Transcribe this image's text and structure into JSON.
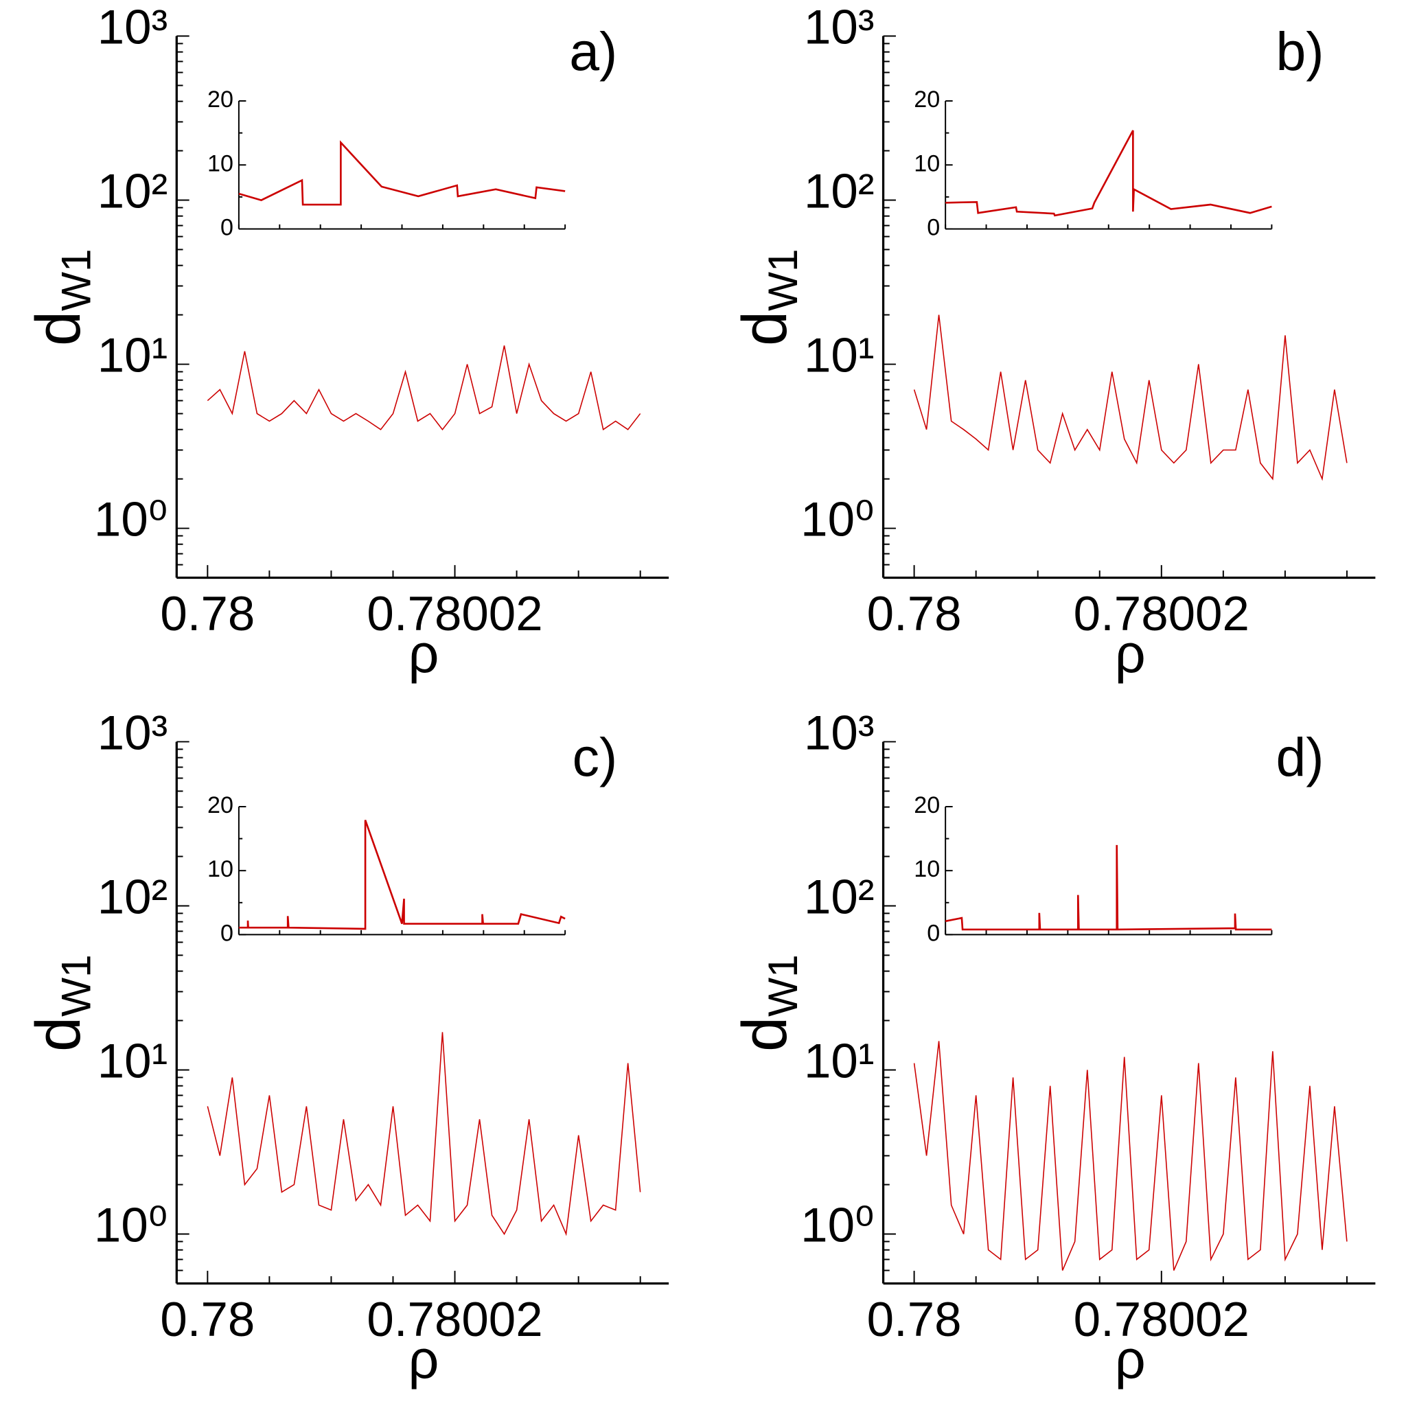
{
  "chart_data": [
    {
      "type": "line",
      "panel_label": "a)",
      "xlabel": "ρ",
      "ylabel": {
        "text": "d",
        "subscript": "W1"
      },
      "log_y": true,
      "color": "#cc0000",
      "xlim": [
        0.7799975,
        0.7800373
      ],
      "xticks": [
        0.78,
        0.78002
      ],
      "xminorticks": [
        0.780005,
        0.78001,
        0.780015,
        0.780025,
        0.78003,
        0.780035
      ],
      "ylim": [
        0.5,
        1000
      ],
      "yticks": [
        {
          "value": 1,
          "label": "10⁰"
        },
        {
          "value": 10,
          "label": "10¹"
        },
        {
          "value": 100,
          "label": "10²"
        },
        {
          "value": 1000,
          "label": "10³"
        }
      ],
      "x": [
        0.78,
        0.780001,
        0.780002,
        0.780003,
        0.780004,
        0.780005,
        0.780006,
        0.780007,
        0.780008,
        0.780009,
        0.78001,
        0.780011,
        0.780012,
        0.780013,
        0.780014,
        0.780015,
        0.780016,
        0.780017,
        0.780018,
        0.780019,
        0.78002,
        0.780021,
        0.780022,
        0.780023,
        0.780024,
        0.780025,
        0.780026,
        0.780027,
        0.780028,
        0.780029,
        0.78003,
        0.780031,
        0.780032,
        0.780033,
        0.780034,
        0.780035
      ],
      "values": [
        6,
        7,
        5,
        12,
        5,
        4.5,
        5,
        6,
        5,
        7,
        5,
        4.5,
        5,
        4.5,
        4,
        5,
        9,
        4.5,
        5,
        4,
        5,
        10,
        5,
        5.5,
        13,
        5,
        10,
        6,
        5,
        4.5,
        5,
        9,
        4,
        4.5,
        4,
        5
      ],
      "inset": {
        "xlim": [
          0,
          8
        ],
        "xminorticks": [
          0,
          1,
          2,
          3,
          4,
          5,
          6,
          7,
          8
        ],
        "ylim": [
          0,
          20
        ],
        "yticks": [
          0,
          10,
          20
        ],
        "yminorticks": [
          5,
          15
        ],
        "x": [
          0,
          0.55,
          1.55,
          1.57,
          2.5,
          2.5,
          3.5,
          4.4,
          5.35,
          5.37,
          6.3,
          7.27,
          7.3,
          8
        ],
        "values": [
          5.5,
          4.5,
          7.6,
          3.8,
          3.8,
          13.5,
          6.6,
          5.1,
          6.8,
          5.1,
          6.2,
          4.8,
          6.5,
          5.9
        ]
      }
    },
    {
      "type": "line",
      "panel_label": "b)",
      "xlabel": "ρ",
      "ylabel": {
        "text": "d",
        "subscript": "W1"
      },
      "log_y": true,
      "color": "#cc0000",
      "xlim": [
        0.7799975,
        0.7800373
      ],
      "xticks": [
        0.78,
        0.78002
      ],
      "xminorticks": [
        0.780005,
        0.78001,
        0.780015,
        0.780025,
        0.78003,
        0.780035
      ],
      "ylim": [
        0.5,
        1000
      ],
      "yticks": [
        {
          "value": 1,
          "label": "10⁰"
        },
        {
          "value": 10,
          "label": "10¹"
        },
        {
          "value": 100,
          "label": "10²"
        },
        {
          "value": 1000,
          "label": "10³"
        }
      ],
      "x": [
        0.78,
        0.780001,
        0.780002,
        0.780003,
        0.780004,
        0.780005,
        0.780006,
        0.780007,
        0.780008,
        0.780009,
        0.78001,
        0.780011,
        0.780012,
        0.780013,
        0.780014,
        0.780015,
        0.780016,
        0.780017,
        0.780018,
        0.780019,
        0.78002,
        0.780021,
        0.780022,
        0.780023,
        0.780024,
        0.780025,
        0.780026,
        0.780027,
        0.780028,
        0.780029,
        0.78003,
        0.780031,
        0.780032,
        0.780033,
        0.780034,
        0.780035
      ],
      "values": [
        7,
        4,
        20,
        4.5,
        4,
        3.5,
        3,
        9,
        3,
        8,
        3,
        2.5,
        5,
        3,
        4,
        3,
        9,
        3.5,
        2.5,
        8,
        3,
        2.5,
        3,
        10,
        2.5,
        3,
        3,
        7,
        2.5,
        2,
        15,
        2.5,
        3,
        2,
        7,
        2.5
      ],
      "inset": {
        "xlim": [
          0,
          8
        ],
        "xminorticks": [
          0,
          1,
          2,
          3,
          4,
          5,
          6,
          7,
          8
        ],
        "ylim": [
          0,
          20
        ],
        "yticks": [
          0,
          10,
          20
        ],
        "yminorticks": [
          5,
          15
        ],
        "x": [
          0,
          0.77,
          0.8,
          1.73,
          1.75,
          2.66,
          2.68,
          3.6,
          3.65,
          4.6,
          4.6,
          4.62,
          5.53,
          6.5,
          7.47,
          8
        ],
        "values": [
          4.1,
          4.2,
          2.5,
          3.4,
          2.7,
          2.4,
          2.1,
          3.2,
          4.1,
          15.4,
          2.7,
          6.2,
          3.1,
          3.8,
          2.5,
          3.5
        ]
      }
    },
    {
      "type": "line",
      "panel_label": "c)",
      "xlabel": "ρ",
      "ylabel": {
        "text": "d",
        "subscript": "W1"
      },
      "log_y": true,
      "color": "#cc0000",
      "xlim": [
        0.7799975,
        0.7800373
      ],
      "xticks": [
        0.78,
        0.78002
      ],
      "xminorticks": [
        0.780005,
        0.78001,
        0.780015,
        0.780025,
        0.78003,
        0.780035
      ],
      "ylim": [
        0.5,
        1000
      ],
      "yticks": [
        {
          "value": 1,
          "label": "10⁰"
        },
        {
          "value": 10,
          "label": "10¹"
        },
        {
          "value": 100,
          "label": "10²"
        },
        {
          "value": 1000,
          "label": "10³"
        }
      ],
      "x": [
        0.78,
        0.780001,
        0.780002,
        0.780003,
        0.780004,
        0.780005,
        0.780006,
        0.780007,
        0.780008,
        0.780009,
        0.78001,
        0.780011,
        0.780012,
        0.780013,
        0.780014,
        0.780015,
        0.780016,
        0.780017,
        0.780018,
        0.780019,
        0.78002,
        0.780021,
        0.780022,
        0.780023,
        0.780024,
        0.780025,
        0.780026,
        0.780027,
        0.780028,
        0.780029,
        0.78003,
        0.780031,
        0.780032,
        0.780033,
        0.780034,
        0.780035
      ],
      "values": [
        6,
        3,
        9,
        2,
        2.5,
        7,
        1.8,
        2,
        6,
        1.5,
        1.4,
        5,
        1.6,
        2,
        1.5,
        6,
        1.3,
        1.5,
        1.2,
        17,
        1.2,
        1.5,
        5,
        1.3,
        1,
        1.4,
        5,
        1.2,
        1.5,
        1,
        4,
        1.2,
        1.5,
        1.4,
        11,
        1.8
      ],
      "inset": {
        "xlim": [
          0,
          8
        ],
        "xminorticks": [
          0,
          1,
          2,
          3,
          4,
          5,
          6,
          7,
          8
        ],
        "ylim": [
          0,
          20
        ],
        "yticks": [
          0,
          10,
          20
        ],
        "yminorticks": [
          5,
          15
        ],
        "x": [
          0,
          0.22,
          0.22,
          0.23,
          1.2,
          1.2,
          1.22,
          3.1,
          3.1,
          4.0,
          4.05,
          4.05,
          5.97,
          5.97,
          5.99,
          6.85,
          6.92,
          7.85,
          7.9,
          8
        ],
        "values": [
          1.1,
          1.1,
          2.2,
          1.1,
          1.1,
          2.9,
          1.1,
          0.9,
          17.9,
          1.7,
          5.6,
          1.7,
          1.7,
          3.2,
          1.7,
          1.7,
          3.2,
          1.8,
          2.8,
          2.5
        ]
      }
    },
    {
      "type": "line",
      "panel_label": "d)",
      "xlabel": "ρ",
      "ylabel": {
        "text": "d",
        "subscript": "W1"
      },
      "log_y": true,
      "color": "#cc0000",
      "xlim": [
        0.7799975,
        0.7800373
      ],
      "xticks": [
        0.78,
        0.78002
      ],
      "xminorticks": [
        0.780005,
        0.78001,
        0.780015,
        0.780025,
        0.78003,
        0.780035
      ],
      "ylim": [
        0.5,
        1000
      ],
      "yticks": [
        {
          "value": 1,
          "label": "10⁰"
        },
        {
          "value": 10,
          "label": "10¹"
        },
        {
          "value": 100,
          "label": "10²"
        },
        {
          "value": 1000,
          "label": "10³"
        }
      ],
      "x": [
        0.78,
        0.780001,
        0.780002,
        0.780003,
        0.780004,
        0.780005,
        0.780006,
        0.780007,
        0.780008,
        0.780009,
        0.78001,
        0.780011,
        0.780012,
        0.780013,
        0.780014,
        0.780015,
        0.780016,
        0.780017,
        0.780018,
        0.780019,
        0.78002,
        0.780021,
        0.780022,
        0.780023,
        0.780024,
        0.780025,
        0.780026,
        0.780027,
        0.780028,
        0.780029,
        0.78003,
        0.780031,
        0.780032,
        0.780033,
        0.780034,
        0.780035
      ],
      "values": [
        11,
        3,
        15,
        1.5,
        1,
        7,
        0.8,
        0.7,
        9,
        0.7,
        0.8,
        8,
        0.6,
        0.9,
        10,
        0.7,
        0.8,
        12,
        0.7,
        0.8,
        7,
        0.6,
        0.9,
        11,
        0.7,
        1,
        9,
        0.7,
        0.8,
        13,
        0.7,
        1,
        8,
        0.8,
        6,
        0.9
      ],
      "inset": {
        "xlim": [
          0,
          8
        ],
        "xminorticks": [
          0,
          1,
          2,
          3,
          4,
          5,
          6,
          7,
          8
        ],
        "ylim": [
          0,
          20
        ],
        "yticks": [
          0,
          10,
          20
        ],
        "yminorticks": [
          5,
          15
        ],
        "x": [
          0,
          0.4,
          0.42,
          2.3,
          2.3,
          2.32,
          3.25,
          3.25,
          3.27,
          4.2,
          4.2,
          4.22,
          7.1,
          7.1,
          7.12,
          8
        ],
        "values": [
          2.1,
          2.6,
          0.8,
          0.8,
          3.4,
          0.8,
          0.8,
          6.2,
          0.8,
          0.8,
          14,
          0.8,
          1.0,
          3.3,
          0.8,
          0.8
        ]
      }
    }
  ]
}
